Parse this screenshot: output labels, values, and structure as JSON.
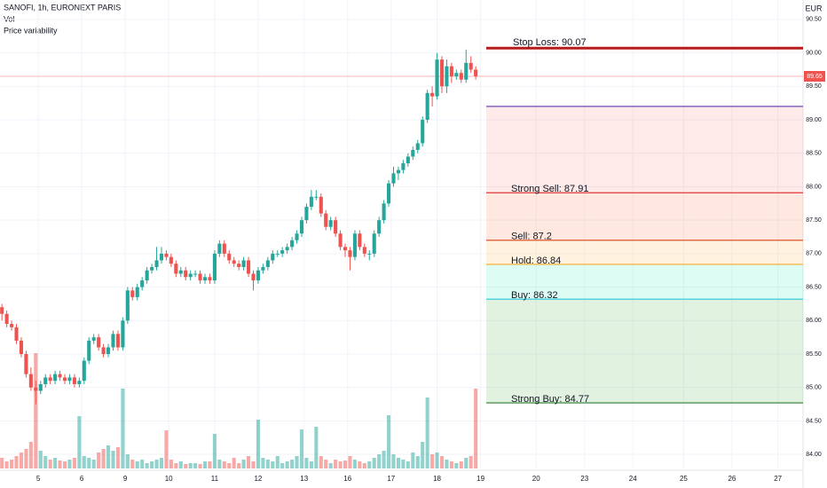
{
  "chart_data": {
    "type": "candlestick",
    "title": "SANOFI, 1h, EURONEXT PARIS",
    "indicators": [
      "Vol",
      "Price variability"
    ],
    "currency": "EUR",
    "up_color": "#26a69a",
    "down_color": "#ef5350",
    "ylim": [
      83.79,
      90.79
    ],
    "yticks": [
      {
        "value": 84,
        "label": "84.00"
      },
      {
        "value": 84.5,
        "label": "84.50"
      },
      {
        "value": 85,
        "label": "85.00"
      },
      {
        "value": 85.5,
        "label": "85.50"
      },
      {
        "value": 86,
        "label": "86.00"
      },
      {
        "value": 86.5,
        "label": "86.50"
      },
      {
        "value": 87,
        "label": "87.00"
      },
      {
        "value": 87.5,
        "label": "87.50"
      },
      {
        "value": 88,
        "label": "88.00"
      },
      {
        "value": 88.5,
        "label": "88.50"
      },
      {
        "value": 89,
        "label": "89.00"
      },
      {
        "value": 89.5,
        "label": "89.50"
      },
      {
        "value": 90,
        "label": "90.00"
      },
      {
        "value": 90.5,
        "label": "90.50"
      }
    ],
    "xlim": [
      -0.4,
      165.7
    ],
    "xticks": [
      {
        "value": 7.5,
        "label": "5"
      },
      {
        "value": 16.5,
        "label": "6"
      },
      {
        "value": 25.5,
        "label": "9"
      },
      {
        "value": 34.5,
        "label": "10"
      },
      {
        "value": 44,
        "label": "11"
      },
      {
        "value": 53,
        "label": "12"
      },
      {
        "value": 62.5,
        "label": "13"
      },
      {
        "value": 71.5,
        "label": "16"
      },
      {
        "value": 80.5,
        "label": "17"
      },
      {
        "value": 90,
        "label": "18"
      },
      {
        "value": 99,
        "label": "19"
      },
      {
        "value": 110.5,
        "label": "20"
      },
      {
        "value": 120.5,
        "label": "23"
      },
      {
        "value": 130.5,
        "label": "24"
      },
      {
        "value": 141,
        "label": "25"
      },
      {
        "value": 151,
        "label": "26"
      },
      {
        "value": 160.5,
        "label": "27"
      }
    ],
    "grid": true,
    "last_price": 89.65,
    "candles": [
      [
        86.2,
        86.25,
        86.0,
        86.1
      ],
      [
        86.1,
        86.15,
        85.9,
        85.95
      ],
      [
        85.95,
        86.0,
        85.85,
        85.9
      ],
      [
        85.9,
        85.95,
        85.65,
        85.7
      ],
      [
        85.7,
        85.75,
        85.45,
        85.5
      ],
      [
        85.5,
        85.55,
        85.15,
        85.2
      ],
      [
        85.2,
        85.3,
        84.95,
        85.0
      ],
      [
        85.0,
        85.1,
        84.75,
        84.95
      ],
      [
        84.95,
        85.1,
        84.9,
        85.05
      ],
      [
        85.05,
        85.2,
        85.0,
        85.15
      ],
      [
        85.15,
        85.2,
        85.05,
        85.1
      ],
      [
        85.1,
        85.25,
        85.05,
        85.2
      ],
      [
        85.2,
        85.25,
        85.1,
        85.15
      ],
      [
        85.15,
        85.2,
        85.05,
        85.1
      ],
      [
        85.1,
        85.2,
        85.05,
        85.15
      ],
      [
        85.15,
        85.2,
        85.0,
        85.05
      ],
      [
        85.05,
        85.15,
        85.0,
        85.1
      ],
      [
        85.1,
        85.45,
        85.05,
        85.4
      ],
      [
        85.4,
        85.75,
        85.35,
        85.7
      ],
      [
        85.7,
        85.8,
        85.65,
        85.75
      ],
      [
        85.75,
        85.8,
        85.55,
        85.6
      ],
      [
        85.6,
        85.65,
        85.45,
        85.5
      ],
      [
        85.5,
        85.65,
        85.45,
        85.6
      ],
      [
        85.6,
        85.85,
        85.55,
        85.8
      ],
      [
        85.8,
        85.85,
        85.55,
        85.6
      ],
      [
        85.6,
        86.05,
        85.55,
        86.0
      ],
      [
        86.0,
        86.5,
        85.95,
        86.45
      ],
      [
        86.45,
        86.5,
        86.3,
        86.35
      ],
      [
        86.35,
        86.55,
        86.3,
        86.5
      ],
      [
        86.5,
        86.65,
        86.45,
        86.6
      ],
      [
        86.6,
        86.8,
        86.55,
        86.75
      ],
      [
        86.75,
        86.85,
        86.7,
        86.8
      ],
      [
        86.8,
        87.1,
        86.75,
        86.9
      ],
      [
        86.9,
        87.1,
        86.85,
        87.0
      ],
      [
        87.0,
        87.05,
        86.9,
        86.95
      ],
      [
        86.95,
        87.0,
        86.8,
        86.85
      ],
      [
        86.85,
        86.9,
        86.65,
        86.7
      ],
      [
        86.7,
        86.8,
        86.65,
        86.75
      ],
      [
        86.75,
        86.8,
        86.6,
        86.65
      ],
      [
        86.65,
        86.75,
        86.6,
        86.7
      ],
      [
        86.7,
        86.75,
        86.65,
        86.7
      ],
      [
        86.7,
        86.75,
        86.55,
        86.6
      ],
      [
        86.6,
        86.7,
        86.55,
        86.65
      ],
      [
        86.65,
        86.7,
        86.55,
        86.6
      ],
      [
        86.6,
        87.05,
        86.55,
        87.0
      ],
      [
        87.0,
        87.2,
        86.95,
        87.15
      ],
      [
        87.15,
        87.2,
        86.95,
        87.0
      ],
      [
        87.0,
        87.05,
        86.85,
        86.9
      ],
      [
        86.9,
        86.95,
        86.8,
        86.85
      ],
      [
        86.85,
        86.9,
        86.75,
        86.8
      ],
      [
        86.8,
        86.95,
        86.75,
        86.9
      ],
      [
        86.9,
        86.95,
        86.65,
        86.7
      ],
      [
        86.7,
        86.75,
        86.45,
        86.6
      ],
      [
        86.6,
        86.8,
        86.55,
        86.75
      ],
      [
        86.75,
        86.85,
        86.7,
        86.8
      ],
      [
        86.8,
        86.95,
        86.75,
        86.9
      ],
      [
        86.9,
        87.05,
        86.85,
        87.0
      ],
      [
        87.0,
        87.05,
        86.95,
        87.0
      ],
      [
        87.0,
        87.1,
        86.95,
        87.05
      ],
      [
        87.05,
        87.15,
        87.0,
        87.1
      ],
      [
        87.1,
        87.25,
        87.05,
        87.2
      ],
      [
        87.2,
        87.35,
        87.15,
        87.3
      ],
      [
        87.3,
        87.55,
        87.25,
        87.5
      ],
      [
        87.5,
        87.75,
        87.45,
        87.7
      ],
      [
        87.7,
        87.95,
        87.65,
        87.85
      ],
      [
        87.85,
        87.95,
        87.8,
        87.85
      ],
      [
        87.85,
        87.9,
        87.55,
        87.6
      ],
      [
        87.6,
        87.65,
        87.35,
        87.4
      ],
      [
        87.4,
        87.55,
        87.35,
        87.5
      ],
      [
        87.5,
        87.55,
        87.25,
        87.3
      ],
      [
        87.3,
        87.35,
        87.05,
        87.1
      ],
      [
        87.1,
        87.15,
        86.95,
        87.05
      ],
      [
        87.05,
        87.1,
        86.75,
        86.95
      ],
      [
        86.95,
        87.35,
        86.9,
        87.3
      ],
      [
        87.3,
        87.35,
        87.05,
        87.1
      ],
      [
        87.1,
        87.15,
        86.95,
        87.0
      ],
      [
        87.0,
        87.05,
        86.9,
        87.0
      ],
      [
        87.0,
        87.35,
        86.95,
        87.3
      ],
      [
        87.3,
        87.55,
        87.25,
        87.5
      ],
      [
        87.5,
        87.8,
        87.45,
        87.75
      ],
      [
        87.75,
        88.1,
        87.7,
        88.05
      ],
      [
        88.05,
        88.3,
        88.0,
        88.2
      ],
      [
        88.2,
        88.3,
        88.1,
        88.25
      ],
      [
        88.25,
        88.4,
        88.2,
        88.35
      ],
      [
        88.35,
        88.5,
        88.3,
        88.45
      ],
      [
        88.45,
        88.6,
        88.4,
        88.55
      ],
      [
        88.55,
        88.7,
        88.5,
        88.65
      ],
      [
        88.65,
        89.05,
        88.6,
        89.0
      ],
      [
        89.0,
        89.45,
        88.95,
        89.4
      ],
      [
        89.4,
        89.5,
        89.2,
        89.35
      ],
      [
        89.35,
        90.0,
        89.3,
        89.9
      ],
      [
        89.9,
        89.95,
        89.4,
        89.5
      ],
      [
        89.5,
        89.9,
        89.4,
        89.8
      ],
      [
        89.8,
        89.85,
        89.55,
        89.65
      ],
      [
        89.65,
        89.75,
        89.6,
        89.7
      ],
      [
        89.7,
        89.75,
        89.55,
        89.6
      ],
      [
        89.6,
        90.05,
        89.55,
        89.85
      ],
      [
        89.85,
        89.95,
        89.7,
        89.75
      ],
      [
        89.75,
        89.8,
        89.6,
        89.65
      ]
    ],
    "volume": [
      12,
      8,
      10,
      14,
      18,
      22,
      30,
      130,
      20,
      14,
      10,
      12,
      9,
      8,
      10,
      12,
      59,
      14,
      12,
      10,
      18,
      22,
      26,
      20,
      24,
      90,
      16,
      10,
      8,
      10,
      6,
      8,
      10,
      12,
      43,
      10,
      6,
      8,
      5,
      6,
      6,
      5,
      8,
      8,
      39,
      10,
      8,
      6,
      12,
      6,
      10,
      14,
      8,
      55,
      12,
      10,
      8,
      14,
      6,
      8,
      10,
      14,
      44,
      12,
      8,
      47,
      14,
      10,
      6,
      10,
      8,
      9,
      14,
      10,
      8,
      6,
      8,
      12,
      16,
      20,
      60,
      16,
      12,
      10,
      8,
      18,
      14,
      30,
      80,
      16,
      18,
      14,
      10,
      8,
      6,
      8,
      12,
      14,
      90
    ],
    "stop_loss": {
      "value": 90.07,
      "label": "Stop Loss: 90.07",
      "color": "#b71c1c"
    },
    "levels": [
      {
        "value": 89.2,
        "color": "#5e35b1",
        "fill": "rgba(244,67,54,0.11)"
      },
      {
        "value": 87.91,
        "label": "Strong Sell: 87.91",
        "color": "#e53935",
        "fill": "rgba(255,110,64,0.16)"
      },
      {
        "value": 87.2,
        "label": "Sell: 87.2",
        "color": "#d84315",
        "fill": "rgba(255,167,38,0.14)"
      },
      {
        "value": 86.84,
        "label": "Hold: 86.84",
        "color": "#f9a825",
        "fill": "rgba(29,233,182,0.15)"
      },
      {
        "value": 86.32,
        "label": "Buy: 86.32",
        "color": "#26c6da",
        "fill": "rgba(76,175,80,0.17)"
      },
      {
        "value": 84.77,
        "label": "Strong Buy: 84.77",
        "color": "#2e7d32"
      }
    ]
  }
}
